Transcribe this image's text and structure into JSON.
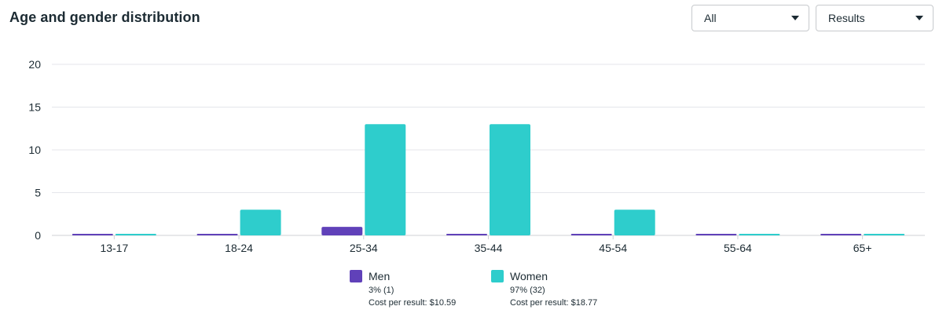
{
  "title": "Age and gender distribution",
  "filters": {
    "audience": "All",
    "metric": "Results"
  },
  "colors": {
    "men": "#6041b9",
    "women": "#2ecdcc",
    "grid": "#e4e6eb",
    "text": "#1c2b33"
  },
  "legend": {
    "men": {
      "label": "Men",
      "share": "3% (1)",
      "cost": "Cost per result: $10.59"
    },
    "women": {
      "label": "Women",
      "share": "97% (32)",
      "cost": "Cost per result: $18.77"
    }
  },
  "chart_data": {
    "type": "bar",
    "categories": [
      "13-17",
      "18-24",
      "25-34",
      "35-44",
      "45-54",
      "55-64",
      "65+"
    ],
    "series": [
      {
        "name": "Men",
        "values": [
          0,
          0,
          1,
          0,
          0,
          0,
          0
        ]
      },
      {
        "name": "Women",
        "values": [
          0,
          3,
          13,
          13,
          3,
          0,
          0
        ]
      }
    ],
    "yticks": [
      0,
      5,
      10,
      15,
      20
    ],
    "ylim": [
      0,
      20
    ],
    "grid": true,
    "legend_position": "bottom"
  }
}
